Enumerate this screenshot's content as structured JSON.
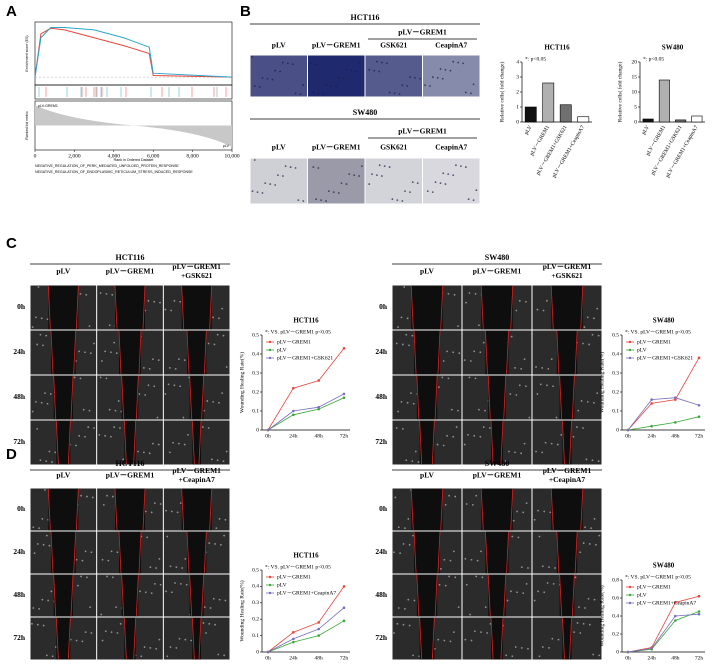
{
  "panel_labels": [
    "A",
    "B",
    "C",
    "D"
  ],
  "image_grids": [
    {
      "title": "HCT116",
      "group_header": "pLV－GREM1",
      "columns": [
        [
          "pLV"
        ],
        [
          "pLV－GREM1"
        ],
        [
          "GSK621"
        ],
        [
          "CeapinA7"
        ]
      ]
    },
    {
      "title": "SW480",
      "group_header": "pLV－GREM1",
      "columns": [
        [
          "pLV"
        ],
        [
          "pLV－GREM1"
        ],
        [
          "GSK621"
        ],
        [
          "CeapinA7"
        ]
      ]
    },
    {
      "title": "HCT116",
      "columns": [
        [
          "pLV"
        ],
        [
          "pLV－GREM1"
        ],
        [
          "pLV－GREM1",
          "+GSK621"
        ]
      ],
      "rows": [
        "0h",
        "24h",
        "48h",
        "72h"
      ]
    },
    {
      "title": "SW480",
      "columns": [
        [
          "pLV"
        ],
        [
          "pLV－GREM1"
        ],
        [
          "pLV－GREM1",
          "+GSK621"
        ]
      ],
      "rows": [
        "0h",
        "24h",
        "48h",
        "72h"
      ]
    },
    {
      "title": "HCT116",
      "columns": [
        [
          "pLV"
        ],
        [
          "pLV－GREM1"
        ],
        [
          "pLV－GREM1",
          "+CeapinA7"
        ]
      ],
      "rows": [
        "0h",
        "24h",
        "48h",
        "72h"
      ]
    },
    {
      "title": "SW480",
      "columns": [
        [
          "pLV"
        ],
        [
          "pLV－GREM1"
        ],
        [
          "pLV－GREM1",
          "+CeapinA7"
        ]
      ],
      "rows": [
        "0h",
        "24h",
        "48h",
        "72h"
      ]
    }
  ],
  "chart_data": [
    {
      "type": "gsea",
      "ylabel": "Enrichment score (ES)",
      "ylabel2": "Ranked list metric",
      "xlabel": "Rank in Ordered Dataset",
      "annotations": [
        "pLV-GREM1",
        "pLV"
      ],
      "x": [
        0,
        300,
        800,
        1500,
        3000,
        4500,
        5800,
        6000,
        10000
      ],
      "xlim": [
        0,
        10000
      ],
      "xticks": [
        0,
        {
          "value": 2000,
          "label": "2,000"
        },
        {
          "value": 4000,
          "label": "4,000"
        },
        {
          "value": 6000,
          "label": "6,000"
        },
        {
          "value": 8000,
          "label": "8,000"
        },
        {
          "value": 10000,
          "label": "10,000"
        }
      ],
      "ylim": [
        -0.1,
        0.7
      ],
      "series": [
        {
          "name": "NEGATIVE_REGULATION_OF_PERK_MEDIATED_UNFOLDED_PROTEIN_RESPONSE",
          "color": "#e8453c",
          "values": [
            0,
            0.55,
            0.62,
            0.6,
            0.5,
            0.4,
            0.3,
            0.02,
            0
          ]
        },
        {
          "name": "NEGATIVE_REGULATION_OF_ENDOPLASMIC_RETICULUM_STRESS_INDUCED_RESPONSE",
          "color": "#2aa7c9",
          "values": [
            0,
            0.5,
            0.63,
            0.63,
            0.6,
            0.5,
            0.38,
            0.05,
            0
          ]
        }
      ]
    },
    {
      "type": "bar",
      "title": "HCT116",
      "ylabel": "Relative cells( fold change)",
      "annotation": "*: p<0.05",
      "categories": [
        "pLV",
        "pLV－GREM1",
        "pLV－GREM1+GSK621",
        "pLV－GREM1+CeapinA7"
      ],
      "values": [
        1,
        2.6,
        1.15,
        0.35
      ],
      "colors": [
        "#111111",
        "#b0b0b0",
        "#707070",
        "#ffffff"
      ],
      "ylim": [
        0,
        4
      ],
      "yticks": [
        0,
        1,
        2,
        3,
        4
      ]
    },
    {
      "type": "bar",
      "title": "SW480",
      "ylabel": "Relative cells( fold change)",
      "annotation": "*: p<0.05",
      "categories": [
        "pLV",
        "pLV－GREM1",
        "pLV－GREM1+GSK621",
        "pLV－GREM1+CeapinA7"
      ],
      "values": [
        1,
        14,
        0.7,
        2
      ],
      "colors": [
        "#111111",
        "#b0b0b0",
        "#707070",
        "#ffffff"
      ],
      "ylim": [
        0,
        20
      ],
      "yticks": [
        0,
        5,
        10,
        15,
        20
      ]
    },
    {
      "type": "line",
      "title": "HCT116",
      "ylabel": "Wounding Healing Rate(%)",
      "annotation": "*: VS. pLV－GREM1 p<0.05",
      "categories": [
        "0h",
        "24h",
        "48h",
        "72h"
      ],
      "ylim": [
        0,
        0.5
      ],
      "yticks": [
        0,
        0.1,
        0.2,
        0.3,
        0.4,
        0.5
      ],
      "series": [
        {
          "name": "pLV－GREM1",
          "color": "#e8453c",
          "values": [
            0,
            0.22,
            0.26,
            0.43
          ]
        },
        {
          "name": "pLV",
          "color": "#3aa83a",
          "values": [
            0,
            0.08,
            0.11,
            0.17
          ]
        },
        {
          "name": "pLV－GREM1+GSK621",
          "color": "#7a6fc0",
          "values": [
            0,
            0.1,
            0.12,
            0.19
          ]
        }
      ]
    },
    {
      "type": "line",
      "title": "SW480",
      "ylabel": "Wounding Healing Rate(%)",
      "annotation": "*: VS. pLV－GREM1 p<0.05",
      "categories": [
        "0h",
        "24h",
        "48h",
        "72h"
      ],
      "ylim": [
        0,
        0.5
      ],
      "yticks": [
        0,
        0.1,
        0.2,
        0.3,
        0.4,
        0.5
      ],
      "series": [
        {
          "name": "pLV－GREM1",
          "color": "#e8453c",
          "values": [
            0,
            0.14,
            0.16,
            0.38
          ]
        },
        {
          "name": "pLV",
          "color": "#3aa83a",
          "values": [
            0,
            0.02,
            0.04,
            0.07
          ]
        },
        {
          "name": "pLV－GREM1+GSK621",
          "color": "#7a6fc0",
          "values": [
            0,
            0.16,
            0.17,
            0.13
          ]
        }
      ]
    },
    {
      "type": "line",
      "title": "HCT116",
      "ylabel": "Wounding Healing Rate(%)",
      "annotation": "*: VS. pLV－GREM1 p<0.05",
      "categories": [
        "0h",
        "24h",
        "48h",
        "72h"
      ],
      "ylim": [
        0,
        0.5
      ],
      "yticks": [
        0,
        0.1,
        0.2,
        0.3,
        0.4,
        0.5
      ],
      "series": [
        {
          "name": "pLV－GREM1",
          "color": "#e8453c",
          "values": [
            0,
            0.12,
            0.18,
            0.4
          ]
        },
        {
          "name": "pLV",
          "color": "#3aa83a",
          "values": [
            0,
            0.06,
            0.1,
            0.19
          ]
        },
        {
          "name": "pLV－GREM1+CeapinA7",
          "color": "#7a6fc0",
          "values": [
            0,
            0.08,
            0.14,
            0.27
          ]
        }
      ]
    },
    {
      "type": "line",
      "title": "SW480",
      "ylabel": "Wounding Healing Rate(%)",
      "annotation": "*: VS. pLV－GREM1 p<0.05",
      "categories": [
        "0h",
        "24h",
        "48h",
        "72h"
      ],
      "ylim": [
        0,
        0.8
      ],
      "yticks": [
        0,
        0.2,
        0.4,
        0.6,
        0.8
      ],
      "series": [
        {
          "name": "pLV－GREM1",
          "color": "#e8453c",
          "values": [
            0,
            0.05,
            0.55,
            0.62
          ]
        },
        {
          "name": "pLV",
          "color": "#3aa83a",
          "values": [
            0,
            0.03,
            0.35,
            0.45
          ]
        },
        {
          "name": "pLV－GREM1+CeapinA7",
          "color": "#7a6fc0",
          "values": [
            0,
            0.04,
            0.4,
            0.42
          ]
        }
      ]
    }
  ]
}
